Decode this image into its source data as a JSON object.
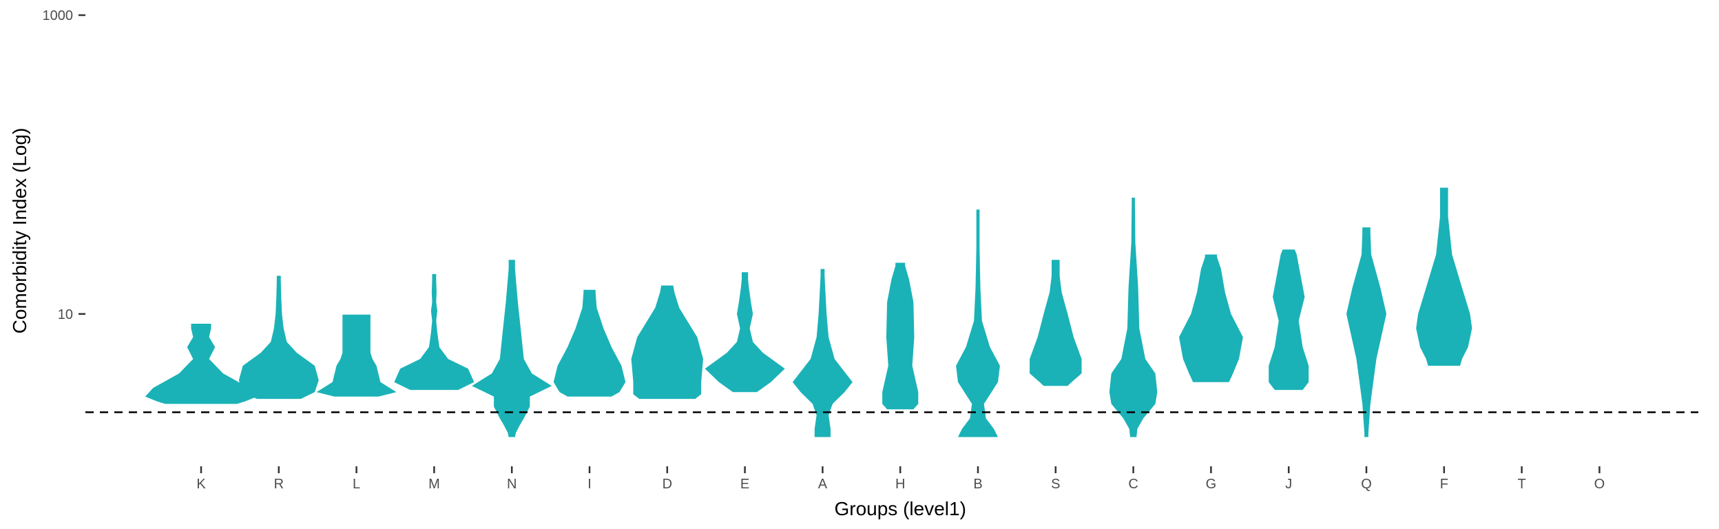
{
  "chart_data": {
    "type": "violin",
    "title": "",
    "xlabel": "Groups (level1)",
    "ylabel": "Comorbidity Index (Log)",
    "y_scale": "log10",
    "ylim": [
      1.3,
      1000
    ],
    "y_ticks": [
      {
        "value": 10,
        "label": "10"
      },
      {
        "value": 1000,
        "label": "1000"
      }
    ],
    "reference_line": {
      "value": 2.2,
      "style": "dashed",
      "color": "#000000"
    },
    "grid": false,
    "legend": "none",
    "colors": {
      "default": "#1AB2B7",
      "highlight": "#F35F5A"
    },
    "categories": [
      "K",
      "R",
      "L",
      "M",
      "N",
      "I",
      "D",
      "E",
      "A",
      "H",
      "B",
      "S",
      "C",
      "G",
      "J",
      "Q",
      "F",
      "T",
      "O"
    ],
    "groups": [
      {
        "name": "K",
        "highlight": false,
        "profile": [
          [
            2.5,
            0.9
          ],
          [
            2.6,
            1.1
          ],
          [
            2.8,
            1.4
          ],
          [
            3.2,
            1.2
          ],
          [
            4.0,
            0.55
          ],
          [
            5.0,
            0.2
          ],
          [
            6.0,
            0.35
          ],
          [
            7.0,
            0.2
          ],
          [
            8.0,
            0.25
          ],
          [
            8.6,
            0.25
          ]
        ]
      },
      {
        "name": "R",
        "highlight": false,
        "profile": [
          [
            2.7,
            0.55
          ],
          [
            3.0,
            0.9
          ],
          [
            3.6,
            1.0
          ],
          [
            4.5,
            0.9
          ],
          [
            5.5,
            0.45
          ],
          [
            6.5,
            0.2
          ],
          [
            8.0,
            0.12
          ],
          [
            10.0,
            0.08
          ],
          [
            13.0,
            0.06
          ],
          [
            17.0,
            0.05
          ],
          [
            18.0,
            0.05
          ]
        ]
      },
      {
        "name": "L",
        "highlight": false,
        "profile": [
          [
            2.8,
            0.55
          ],
          [
            3.0,
            1.0
          ],
          [
            3.5,
            0.6
          ],
          [
            4.5,
            0.5
          ],
          [
            5.0,
            0.4
          ],
          [
            5.5,
            0.35
          ],
          [
            6.5,
            0.35
          ],
          [
            8.0,
            0.35
          ],
          [
            9.5,
            0.35
          ],
          [
            9.9,
            0.35
          ]
        ]
      },
      {
        "name": "M",
        "highlight": false,
        "profile": [
          [
            3.1,
            0.6
          ],
          [
            3.5,
            1.0
          ],
          [
            4.3,
            0.85
          ],
          [
            5.0,
            0.35
          ],
          [
            6.0,
            0.13
          ],
          [
            7.5,
            0.08
          ],
          [
            9.0,
            0.05
          ],
          [
            10.5,
            0.08
          ],
          [
            12.0,
            0.05
          ],
          [
            14.0,
            0.06
          ],
          [
            17.0,
            0.05
          ],
          [
            18.5,
            0.05
          ]
        ]
      },
      {
        "name": "N",
        "highlight": false,
        "profile": [
          [
            1.5,
            0.08
          ],
          [
            1.6,
            0.1
          ],
          [
            1.8,
            0.2
          ],
          [
            2.0,
            0.3
          ],
          [
            2.4,
            0.45
          ],
          [
            2.8,
            0.45
          ],
          [
            3.3,
            1.0
          ],
          [
            4.0,
            0.5
          ],
          [
            5.0,
            0.3
          ],
          [
            8.0,
            0.22
          ],
          [
            12.0,
            0.15
          ],
          [
            20.0,
            0.08
          ],
          [
            23.0,
            0.08
          ]
        ]
      },
      {
        "name": "I",
        "highlight": false,
        "profile": [
          [
            2.8,
            0.55
          ],
          [
            3.0,
            0.75
          ],
          [
            3.5,
            0.9
          ],
          [
            4.5,
            0.8
          ],
          [
            6.0,
            0.55
          ],
          [
            8.0,
            0.35
          ],
          [
            11.0,
            0.18
          ],
          [
            14.0,
            0.15
          ],
          [
            14.5,
            0.15
          ]
        ]
      },
      {
        "name": "D",
        "highlight": false,
        "profile": [
          [
            2.7,
            0.7
          ],
          [
            2.9,
            0.85
          ],
          [
            3.5,
            0.85
          ],
          [
            5.0,
            0.9
          ],
          [
            7.0,
            0.75
          ],
          [
            9.0,
            0.5
          ],
          [
            11.0,
            0.3
          ],
          [
            14.0,
            0.18
          ],
          [
            15.5,
            0.15
          ]
        ]
      },
      {
        "name": "E",
        "highlight": false,
        "profile": [
          [
            3.0,
            0.3
          ],
          [
            3.5,
            0.65
          ],
          [
            4.3,
            1.0
          ],
          [
            5.5,
            0.45
          ],
          [
            6.5,
            0.2
          ],
          [
            8.0,
            0.12
          ],
          [
            10.0,
            0.2
          ],
          [
            12.0,
            0.15
          ],
          [
            15.0,
            0.1
          ],
          [
            17.0,
            0.08
          ],
          [
            19.0,
            0.08
          ]
        ]
      },
      {
        "name": "A",
        "highlight": false,
        "profile": [
          [
            1.5,
            0.2
          ],
          [
            1.7,
            0.2
          ],
          [
            2.1,
            0.15
          ],
          [
            2.5,
            0.25
          ],
          [
            3.0,
            0.55
          ],
          [
            3.5,
            0.75
          ],
          [
            5.0,
            0.3
          ],
          [
            7.0,
            0.15
          ],
          [
            10.0,
            0.1
          ],
          [
            14.0,
            0.07
          ],
          [
            18.0,
            0.05
          ],
          [
            20.0,
            0.05
          ]
        ]
      },
      {
        "name": "H",
        "highlight": false,
        "profile": [
          [
            2.3,
            0.33
          ],
          [
            2.5,
            0.45
          ],
          [
            3.0,
            0.45
          ],
          [
            4.5,
            0.3
          ],
          [
            7.0,
            0.35
          ],
          [
            12.0,
            0.33
          ],
          [
            17.0,
            0.22
          ],
          [
            21.0,
            0.12
          ],
          [
            22.0,
            0.12
          ]
        ]
      },
      {
        "name": "B",
        "highlight": false,
        "profile": [
          [
            1.5,
            0.5
          ],
          [
            1.7,
            0.4
          ],
          [
            2.0,
            0.2
          ],
          [
            2.5,
            0.15
          ],
          [
            3.5,
            0.5
          ],
          [
            4.5,
            0.55
          ],
          [
            6.0,
            0.3
          ],
          [
            9.0,
            0.1
          ],
          [
            15.0,
            0.06
          ],
          [
            28.0,
            0.04
          ],
          [
            48.0,
            0.04
          ],
          [
            50.0,
            0.04
          ]
        ]
      },
      {
        "name": "S",
        "highlight": false,
        "profile": [
          [
            3.3,
            0.3
          ],
          [
            3.5,
            0.4
          ],
          [
            4.0,
            0.65
          ],
          [
            5.0,
            0.65
          ],
          [
            7.0,
            0.45
          ],
          [
            10.0,
            0.3
          ],
          [
            14.0,
            0.15
          ],
          [
            18.0,
            0.1
          ],
          [
            22.0,
            0.1
          ],
          [
            23.0,
            0.1
          ]
        ]
      },
      {
        "name": "C",
        "highlight": false,
        "profile": [
          [
            1.5,
            0.08
          ],
          [
            1.7,
            0.1
          ],
          [
            2.0,
            0.25
          ],
          [
            2.5,
            0.55
          ],
          [
            3.0,
            0.6
          ],
          [
            4.0,
            0.55
          ],
          [
            5.0,
            0.3
          ],
          [
            8.0,
            0.15
          ],
          [
            15.0,
            0.12
          ],
          [
            30.0,
            0.05
          ],
          [
            55.0,
            0.04
          ],
          [
            60.0,
            0.04
          ]
        ]
      },
      {
        "name": "G",
        "highlight": false,
        "profile": [
          [
            3.5,
            0.45
          ],
          [
            4.0,
            0.55
          ],
          [
            5.0,
            0.7
          ],
          [
            7.0,
            0.8
          ],
          [
            10.0,
            0.5
          ],
          [
            14.0,
            0.35
          ],
          [
            20.0,
            0.25
          ],
          [
            24.0,
            0.15
          ],
          [
            25.0,
            0.15
          ]
        ]
      },
      {
        "name": "J",
        "highlight": false,
        "profile": [
          [
            3.1,
            0.35
          ],
          [
            3.5,
            0.5
          ],
          [
            4.5,
            0.5
          ],
          [
            6.0,
            0.35
          ],
          [
            9.0,
            0.25
          ],
          [
            13.0,
            0.4
          ],
          [
            18.0,
            0.3
          ],
          [
            25.0,
            0.2
          ],
          [
            27.0,
            0.15
          ]
        ]
      },
      {
        "name": "Q",
        "highlight": false,
        "profile": [
          [
            1.5,
            0.05
          ],
          [
            1.6,
            0.05
          ],
          [
            2.5,
            0.1
          ],
          [
            5.0,
            0.25
          ],
          [
            10.0,
            0.5
          ],
          [
            15.0,
            0.35
          ],
          [
            25.0,
            0.12
          ],
          [
            35.0,
            0.1
          ],
          [
            38.0,
            0.1
          ]
        ]
      },
      {
        "name": "F",
        "highlight": false,
        "profile": [
          [
            4.5,
            0.4
          ],
          [
            5.0,
            0.45
          ],
          [
            6.0,
            0.6
          ],
          [
            8.0,
            0.7
          ],
          [
            10.0,
            0.65
          ],
          [
            15.0,
            0.45
          ],
          [
            25.0,
            0.2
          ],
          [
            45.0,
            0.1
          ],
          [
            68.0,
            0.1
          ],
          [
            70.0,
            0.1
          ]
        ]
      }
    ]
  }
}
